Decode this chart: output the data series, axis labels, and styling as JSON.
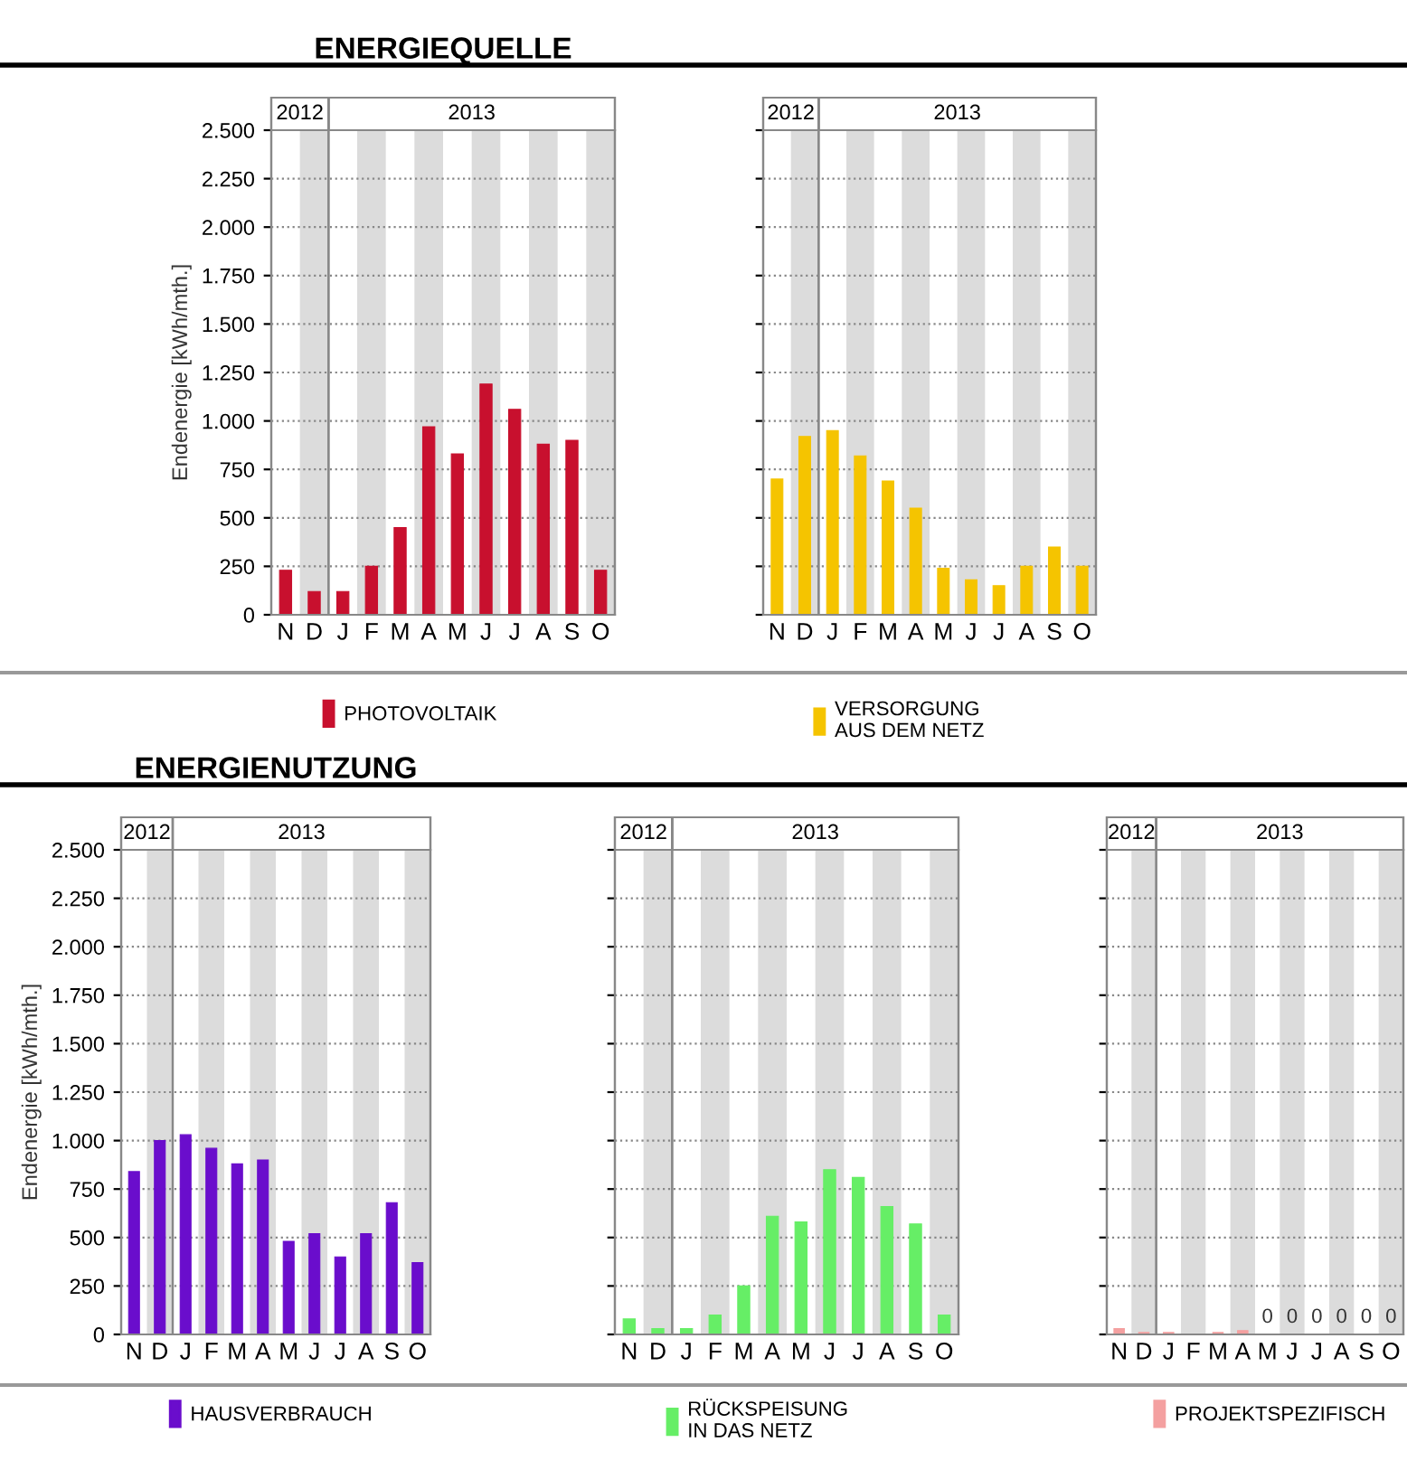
{
  "chart_data": [
    {
      "type": "bar",
      "title": "ENERGIEQUELLE",
      "ylabel": "Endenergie [kWh/mth.]",
      "annotations": [
        "2012",
        "2013"
      ],
      "categories": [
        "N",
        "D",
        "J",
        "F",
        "M",
        "A",
        "M",
        "J",
        "J",
        "A",
        "S",
        "O"
      ],
      "series": [
        {
          "name": "PHOTOVOLTAIK",
          "color": "#c8102e",
          "values": [
            230,
            120,
            120,
            250,
            450,
            970,
            830,
            1190,
            1060,
            880,
            900,
            230
          ]
        }
      ],
      "ylim": [
        0,
        2500
      ],
      "yticks": [
        {
          "value": 0,
          "label": "0"
        },
        {
          "value": 250,
          "label": "250"
        },
        {
          "value": 500,
          "label": "500"
        },
        {
          "value": 750,
          "label": "750"
        },
        {
          "value": 1000,
          "label": "1.000"
        },
        {
          "value": 1250,
          "label": "1.250"
        },
        {
          "value": 1500,
          "label": "1.500"
        },
        {
          "value": 1750,
          "label": "1.750"
        },
        {
          "value": 2000,
          "label": "2.000"
        },
        {
          "value": 2250,
          "label": "2.250"
        },
        {
          "value": 2500,
          "label": "2.500"
        }
      ],
      "grid": "y",
      "legend": "bottom"
    },
    {
      "type": "bar",
      "annotations": [
        "2012",
        "2013"
      ],
      "categories": [
        "N",
        "D",
        "J",
        "F",
        "M",
        "A",
        "M",
        "J",
        "J",
        "A",
        "S",
        "O"
      ],
      "series": [
        {
          "name": "VERSORGUNG\nAUS DEM NETZ",
          "color": "#f5c400",
          "values": [
            700,
            920,
            950,
            820,
            690,
            550,
            240,
            180,
            150,
            250,
            350,
            250
          ]
        }
      ],
      "ylim": [
        0,
        2500
      ],
      "yticks": [
        {
          "value": 0,
          "label": null
        },
        {
          "value": 250,
          "label": null
        },
        {
          "value": 500,
          "label": null
        },
        {
          "value": 750,
          "label": null
        },
        {
          "value": 1000,
          "label": null
        },
        {
          "value": 1250,
          "label": null
        },
        {
          "value": 1500,
          "label": null
        },
        {
          "value": 1750,
          "label": null
        },
        {
          "value": 2000,
          "label": null
        },
        {
          "value": 2250,
          "label": null
        },
        {
          "value": 2500,
          "label": null
        }
      ],
      "tick_labels": "x",
      "grid": "y",
      "legend": "bottom"
    },
    {
      "type": "bar",
      "title": "ENERGIENUTZUNG",
      "ylabel": "Endenergie [kWh/mth.]",
      "annotations": [
        "2012",
        "2013"
      ],
      "categories": [
        "N",
        "D",
        "J",
        "F",
        "M",
        "A",
        "M",
        "J",
        "J",
        "A",
        "S",
        "O"
      ],
      "series": [
        {
          "name": "HAUSVERBRAUCH",
          "color": "#6a0dcc",
          "values": [
            840,
            1000,
            1030,
            960,
            880,
            900,
            480,
            520,
            400,
            520,
            680,
            370
          ]
        }
      ],
      "ylim": [
        0,
        2500
      ],
      "yticks": [
        {
          "value": 0,
          "label": "0"
        },
        {
          "value": 250,
          "label": "250"
        },
        {
          "value": 500,
          "label": "500"
        },
        {
          "value": 750,
          "label": "750"
        },
        {
          "value": 1000,
          "label": "1.000"
        },
        {
          "value": 1250,
          "label": "1.250"
        },
        {
          "value": 1500,
          "label": "1.500"
        },
        {
          "value": 1750,
          "label": "1.750"
        },
        {
          "value": 2000,
          "label": "2.000"
        },
        {
          "value": 2250,
          "label": "2.250"
        },
        {
          "value": 2500,
          "label": "2.500"
        }
      ],
      "grid": "y",
      "legend": "bottom"
    },
    {
      "type": "bar",
      "annotations": [
        "2012",
        "2013"
      ],
      "categories": [
        "N",
        "D",
        "J",
        "F",
        "M",
        "A",
        "M",
        "J",
        "J",
        "A",
        "S",
        "O"
      ],
      "series": [
        {
          "name": "RÜCKSPEISUNG\nIN DAS NETZ",
          "color": "#66ee66",
          "values": [
            80,
            30,
            30,
            100,
            250,
            610,
            580,
            850,
            810,
            660,
            570,
            100
          ]
        }
      ],
      "ylim": [
        0,
        2500
      ],
      "yticks": [
        {
          "value": 0,
          "label": null
        },
        {
          "value": 250,
          "label": null
        },
        {
          "value": 500,
          "label": null
        },
        {
          "value": 750,
          "label": null
        },
        {
          "value": 1000,
          "label": null
        },
        {
          "value": 1250,
          "label": null
        },
        {
          "value": 1500,
          "label": null
        },
        {
          "value": 1750,
          "label": null
        },
        {
          "value": 2000,
          "label": null
        },
        {
          "value": 2250,
          "label": null
        },
        {
          "value": 2500,
          "label": null
        }
      ],
      "tick_labels": "x",
      "grid": "y",
      "legend": "bottom"
    },
    {
      "type": "bar",
      "annotations": [
        "2012",
        "2013"
      ],
      "categories": [
        "N",
        "D",
        "J",
        "F",
        "M",
        "A",
        "M",
        "J",
        "J",
        "A",
        "S",
        "O"
      ],
      "series": [
        {
          "name": "PROJEKTSPEZIFISCH",
          "color": "#f4a0a0",
          "values": [
            30,
            10,
            10,
            0,
            10,
            20,
            0,
            0,
            0,
            0,
            0,
            0
          ],
          "value_labels": [
            null,
            null,
            null,
            null,
            null,
            null,
            "0",
            "0",
            "0",
            "0",
            "0",
            "0"
          ]
        }
      ],
      "ylim": [
        0,
        2500
      ],
      "yticks": [
        {
          "value": 0,
          "label": null
        },
        {
          "value": 250,
          "label": null
        },
        {
          "value": 500,
          "label": null
        },
        {
          "value": 750,
          "label": null
        },
        {
          "value": 1000,
          "label": null
        },
        {
          "value": 1250,
          "label": null
        },
        {
          "value": 1500,
          "label": null
        },
        {
          "value": 1750,
          "label": null
        },
        {
          "value": 2000,
          "label": null
        },
        {
          "value": 2250,
          "label": null
        },
        {
          "value": 2500,
          "label": null
        }
      ],
      "tick_labels": "x",
      "grid": "y",
      "legend": "bottom"
    }
  ]
}
